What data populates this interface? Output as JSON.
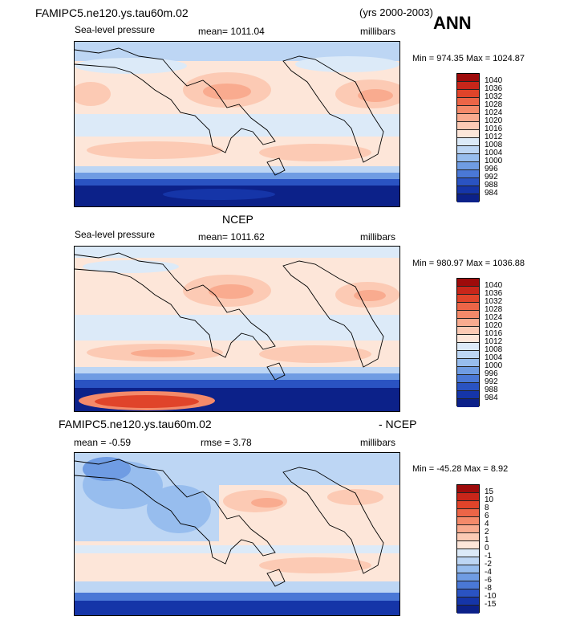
{
  "header": {
    "case_name": "FAMIPC5.ne120.ys.tau60m.02",
    "years": "(yrs 2000-2003)",
    "season": "ANN"
  },
  "panels": [
    {
      "id": "model",
      "title": "",
      "left_label": "Sea-level pressure",
      "center_label": "mean=  1011.04",
      "right_label": "millibars",
      "minmax": "Min = 974.35  Max = 1024.87",
      "colorbar_labels": [
        "1040",
        "1036",
        "1032",
        "1028",
        "1024",
        "1020",
        "1016",
        "1012",
        "1008",
        "1004",
        "1000",
        "996",
        "992",
        "988",
        "984"
      ],
      "colorbar_colors": [
        "#9e0b0b",
        "#c8261a",
        "#e0442a",
        "#ec6547",
        "#f48a6a",
        "#f9ab8f",
        "#fccab4",
        "#fde6d9",
        "#dceaf8",
        "#bdd6f4",
        "#97bdee",
        "#6f9ce3",
        "#4a78d6",
        "#2a53c2",
        "#1535a8",
        "#0c2189"
      ]
    },
    {
      "id": "ncep",
      "title": "NCEP",
      "left_label": "Sea-level pressure",
      "center_label": "mean=  1011.62",
      "right_label": "millibars",
      "minmax": "Min = 980.97  Max = 1036.88",
      "colorbar_labels": [
        "1040",
        "1036",
        "1032",
        "1028",
        "1024",
        "1020",
        "1016",
        "1012",
        "1008",
        "1004",
        "1000",
        "996",
        "992",
        "988",
        "984"
      ],
      "colorbar_colors": [
        "#9e0b0b",
        "#c8261a",
        "#e0442a",
        "#ec6547",
        "#f48a6a",
        "#f9ab8f",
        "#fccab4",
        "#fde6d9",
        "#dceaf8",
        "#bdd6f4",
        "#97bdee",
        "#6f9ce3",
        "#4a78d6",
        "#2a53c2",
        "#1535a8",
        "#0c2189"
      ]
    },
    {
      "id": "diff",
      "title_left": "FAMIPC5.ne120.ys.tau60m.02",
      "title_right": "- NCEP",
      "mean_label": "mean =    -0.59",
      "rmse_label": "rmse =     3.78",
      "right_label": "millibars",
      "minmax": "Min = -45.28  Max =     8.92",
      "colorbar_labels": [
        "15",
        "10",
        "8",
        "6",
        "4",
        "2",
        "1",
        "0",
        "-1",
        "-2",
        "-4",
        "-6",
        "-8",
        "-10",
        "-15"
      ],
      "colorbar_colors": [
        "#9e0b0b",
        "#c8261a",
        "#e0442a",
        "#ec6547",
        "#f48a6a",
        "#f9ab8f",
        "#fccab4",
        "#fde6d9",
        "#dceaf8",
        "#bdd6f4",
        "#97bdee",
        "#6f9ce3",
        "#4a78d6",
        "#2a53c2",
        "#1535a8",
        "#0c2189"
      ]
    }
  ]
}
